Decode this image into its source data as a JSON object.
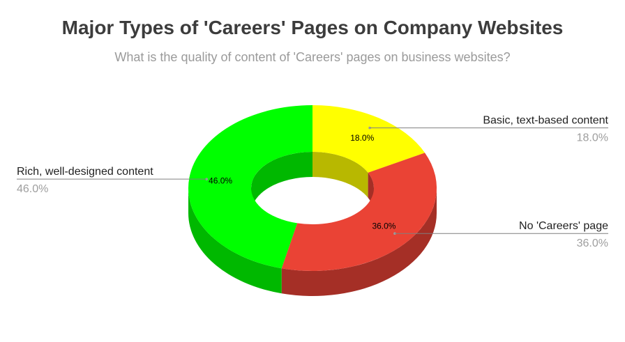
{
  "chart_data": {
    "type": "pie",
    "subtype": "3d-donut",
    "title": "Major Types of 'Careers' Pages on Company Websites",
    "subtitle": "What is the quality of content of 'Careers' pages on business websites?",
    "slices": [
      {
        "label": "Basic, text-based content",
        "value": 18.0,
        "pct_label": "18.0%",
        "color": "#ffff00",
        "side_color": "#b8b800"
      },
      {
        "label": "No 'Careers' page",
        "value": 36.0,
        "pct_label": "36.0%",
        "color": "#ea4335",
        "side_color": "#a52f26"
      },
      {
        "label": "Rich, well-designed content",
        "value": 46.0,
        "pct_label": "46.0%",
        "color": "#00ff00",
        "side_color": "#00b800"
      }
    ],
    "legend": "none"
  }
}
